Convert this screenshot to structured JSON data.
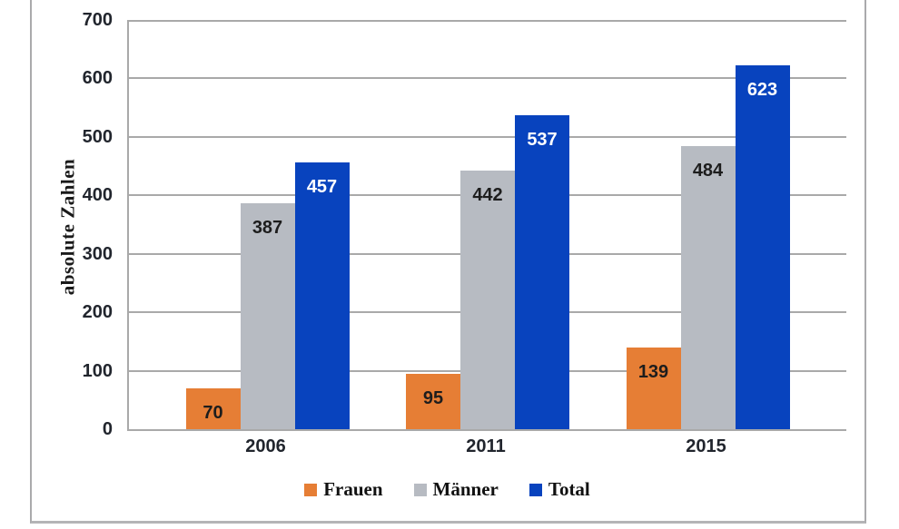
{
  "chart_data": {
    "type": "bar",
    "title": "",
    "xlabel": "",
    "ylabel": "absolute Zahlen",
    "categories": [
      "2006",
      "2011",
      "2015"
    ],
    "series": [
      {
        "name": "Frauen",
        "color": "#e67e35",
        "label_color": "#1d1d1d",
        "values": [
          70,
          95,
          139
        ]
      },
      {
        "name": "Männer",
        "color": "#b7bbc2",
        "label_color": "#1d1d1d",
        "values": [
          387,
          442,
          484
        ]
      },
      {
        "name": "Total",
        "color": "#0843be",
        "label_color": "#ffffff",
        "values": [
          457,
          537,
          623
        ]
      }
    ],
    "ylim": [
      0,
      700
    ],
    "ytick_step": 100,
    "grid": true,
    "legend_position": "bottom",
    "colors": {
      "gridline": "#a9a9a9",
      "axis_line": "#a9a9a9",
      "tick_label": "#21252d",
      "frame_border": "#aaaaac"
    }
  }
}
